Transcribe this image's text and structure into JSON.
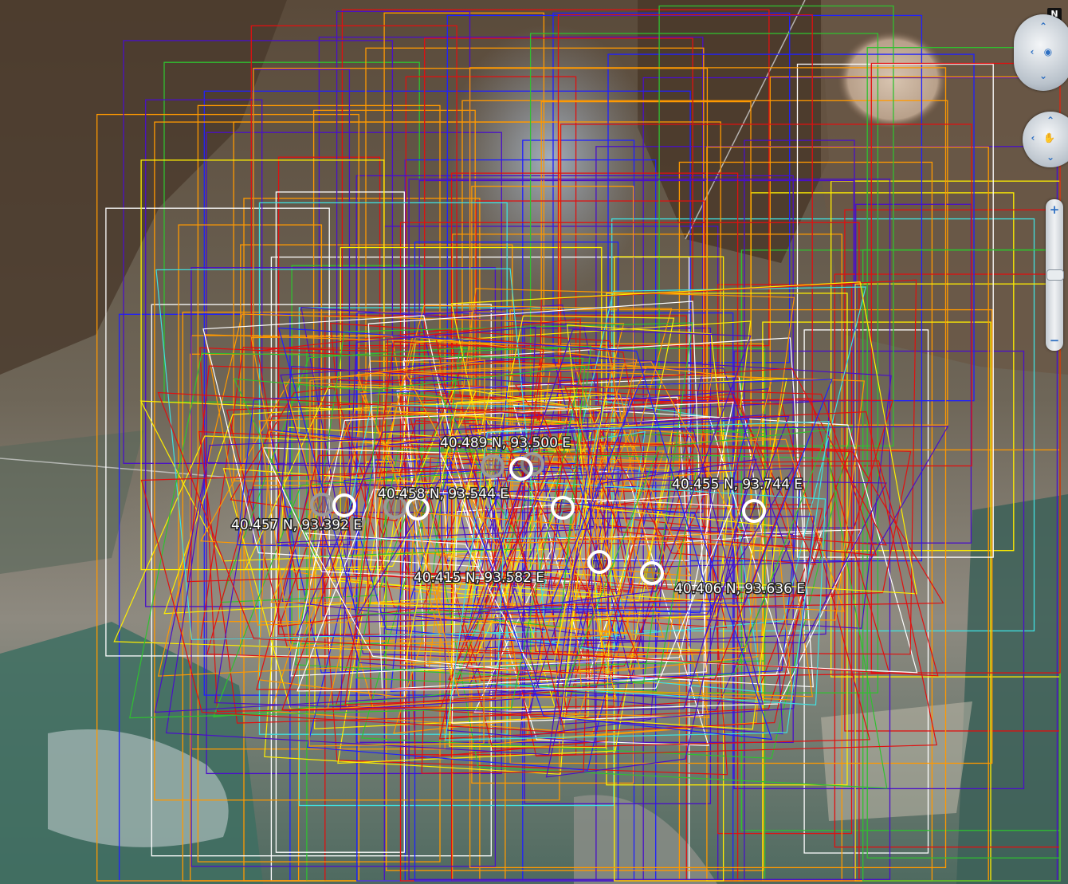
{
  "placemarks": [
    {
      "label": "40.489 N, 93.500 E",
      "lat": 40.489,
      "lon": 93.5
    },
    {
      "label": "40.458 N, 93.544 E",
      "lat": 40.458,
      "lon": 93.544
    },
    {
      "label": "40.457 N, 93.392 E",
      "lat": 40.457,
      "lon": 93.392
    },
    {
      "label": "40.455 N, 93.744 E",
      "lat": 40.455,
      "lon": 93.744
    },
    {
      "label": "40.415 N, 93.582 E",
      "lat": 40.415,
      "lon": 93.582
    },
    {
      "label": "40.406 N, 93.636 E",
      "lat": 40.406,
      "lon": 93.636
    }
  ],
  "navigation": {
    "north_label": "N",
    "zoom_in_label": "+",
    "zoom_out_label": "−"
  },
  "overlay_colors": {
    "red": "#e01010",
    "purple": "#4a10c8",
    "blue": "#2020ff",
    "orange": "#ff9900",
    "yellow": "#ffee00",
    "cyan": "#40e0e0",
    "white": "#ffffff",
    "green": "#30c030"
  }
}
